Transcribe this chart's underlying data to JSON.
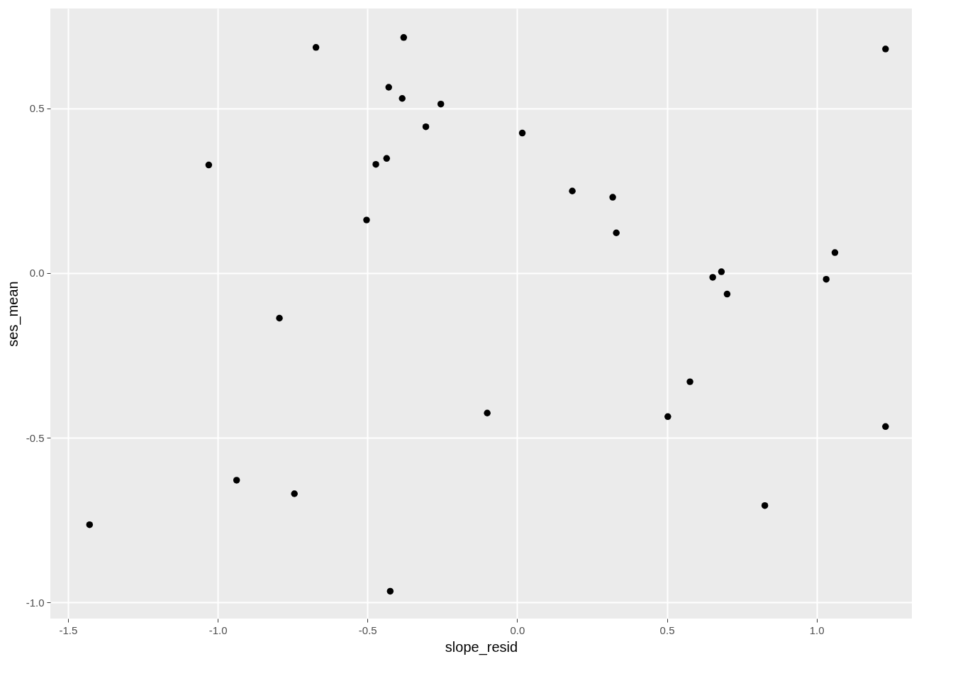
{
  "chart_data": {
    "type": "scatter",
    "xlabel": "slope_resid",
    "ylabel": "ses_mean",
    "xlim": [
      -1.559,
      1.318
    ],
    "ylim": [
      -1.049,
      0.803
    ],
    "xticks": [
      {
        "value": -1.5,
        "label": "-1.5"
      },
      {
        "value": -1,
        "label": "-1.0"
      },
      {
        "value": -0.5,
        "label": "-0.5"
      },
      {
        "value": 0,
        "label": "0.0"
      },
      {
        "value": 0.5,
        "label": "0.5"
      },
      {
        "value": 1,
        "label": "1.0"
      }
    ],
    "yticks": [
      {
        "value": -1,
        "label": "-1.0"
      },
      {
        "value": -0.5,
        "label": "-0.5"
      },
      {
        "value": 0,
        "label": "0.0"
      },
      {
        "value": 0.5,
        "label": "0.5"
      }
    ],
    "grid": true,
    "marker": "circle",
    "series": [
      {
        "color": "#000000",
        "x": [
          -1.428,
          -1.03,
          -0.937,
          -0.794,
          -0.744,
          -0.672,
          -0.503,
          -0.472,
          -0.436,
          -0.429,
          -0.424,
          -0.384,
          -0.379,
          -0.305,
          -0.255,
          -0.1,
          0.017,
          0.184,
          0.319,
          0.331,
          0.503,
          0.577,
          0.653,
          0.682,
          0.701,
          0.827,
          1.032,
          1.061,
          1.23,
          1.23
        ],
        "values": [
          -0.764,
          0.328,
          -0.629,
          -0.137,
          -0.67,
          0.685,
          0.161,
          0.33,
          0.348,
          0.564,
          -0.966,
          0.53,
          0.715,
          0.444,
          0.513,
          -0.425,
          0.425,
          0.249,
          0.23,
          0.122,
          -0.436,
          -0.33,
          -0.013,
          0.004,
          -0.064,
          -0.706,
          -0.019,
          0.062,
          0.68,
          -0.466
        ]
      }
    ]
  }
}
